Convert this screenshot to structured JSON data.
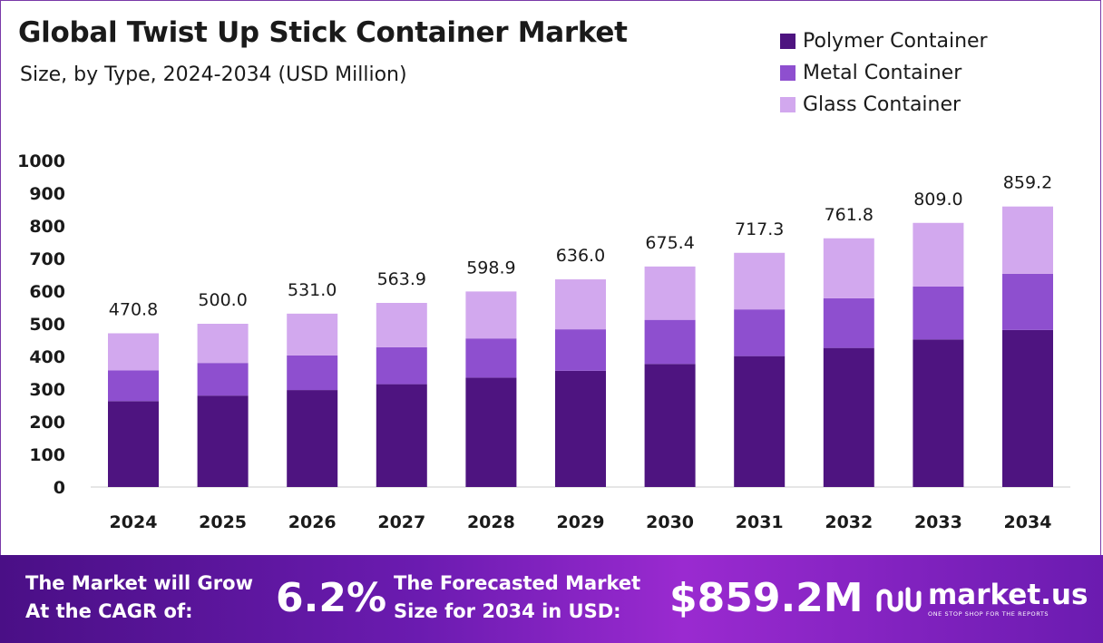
{
  "header": {
    "title": "Global Twist Up Stick Container Market",
    "subtitle": "Size, by Type, 2024-2034 (USD Million)"
  },
  "colors": {
    "polymer": "#4e1480",
    "metal": "#8e4fcf",
    "glass": "#d2a8ee",
    "footer_bg": "#6b1bb0"
  },
  "chart_data": {
    "type": "bar",
    "stacked": true,
    "title": "Global Twist Up Stick Container Market",
    "subtitle": "Size, by Type, 2024-2034 (USD Million)",
    "categories": [
      "2024",
      "2025",
      "2026",
      "2027",
      "2028",
      "2029",
      "2030",
      "2031",
      "2032",
      "2033",
      "2034"
    ],
    "series": [
      {
        "name": "Polymer Container",
        "values": [
          263,
          280,
          297,
          315,
          335,
          356,
          377,
          401,
          426,
          452,
          481
        ]
      },
      {
        "name": "Metal Container",
        "values": [
          94,
          100,
          106,
          113,
          120,
          127,
          135,
          143,
          152,
          162,
          172
        ]
      },
      {
        "name": "Glass Container",
        "values": [
          113.8,
          120.0,
          128.0,
          135.9,
          143.9,
          153.0,
          163.4,
          173.3,
          183.8,
          195.0,
          206.2
        ]
      }
    ],
    "totals": [
      470.8,
      500.0,
      531.0,
      563.9,
      598.9,
      636.0,
      675.4,
      717.3,
      761.8,
      809.0,
      859.2
    ],
    "total_labels": [
      "470.8",
      "500.0",
      "531.0",
      "563.9",
      "598.9",
      "636.0",
      "675.4",
      "717.3",
      "761.8",
      "809.0",
      "859.2"
    ],
    "yticks": [
      "0",
      "100",
      "200",
      "300",
      "400",
      "500",
      "600",
      "700",
      "800",
      "900",
      "1000"
    ],
    "ylim": [
      0,
      1000
    ],
    "grid": false,
    "legend_position": "top-right"
  },
  "footer": {
    "cagr_label_line1": "The Market will Grow",
    "cagr_label_line2": "At the CAGR of:",
    "cagr_value": "6.2%",
    "forecast_label_line1": "The Forecasted Market",
    "forecast_label_line2": "Size for 2034 in USD:",
    "forecast_value": "$859.2M",
    "brand_name": "market.us",
    "brand_tagline": "ONE STOP SHOP FOR THE REPORTS"
  }
}
